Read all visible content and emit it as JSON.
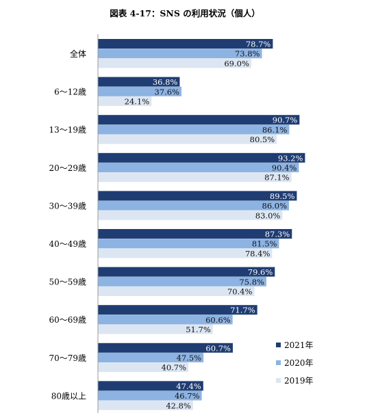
{
  "chart_data": {
    "type": "bar",
    "orientation": "horizontal",
    "title": "図表 4-17：SNS の利用状況（個人）",
    "categories": [
      "全体",
      "6～12歳",
      "13～19歳",
      "20～29歳",
      "30～39歳",
      "40～49歳",
      "50～59歳",
      "60～69歳",
      "70～79歳",
      "80歳以上"
    ],
    "series": [
      {
        "name": "2021年",
        "color": "#1f3d73",
        "values": [
          78.7,
          36.8,
          90.7,
          93.2,
          89.5,
          87.3,
          79.6,
          71.7,
          60.7,
          47.4
        ],
        "labels": [
          "78.7%",
          "36.8%",
          "90.7%",
          "93.2%",
          "89.5%",
          "87.3%",
          "79.6%",
          "71.7%",
          "60.7%",
          "47.4%"
        ]
      },
      {
        "name": "2020年",
        "color": "#8db3e2",
        "values": [
          73.8,
          37.6,
          86.1,
          90.4,
          86.0,
          81.5,
          75.8,
          60.6,
          47.5,
          46.7
        ],
        "labels": [
          "73.8%",
          "37.6%",
          "86.1%",
          "90.4%",
          "86.0%",
          "81.5%",
          "75.8%",
          "60.6%",
          "47.5%",
          "46.7%"
        ]
      },
      {
        "name": "2019年",
        "color": "#dce6f2",
        "values": [
          69.0,
          24.1,
          80.5,
          87.1,
          83.0,
          78.4,
          70.4,
          51.7,
          40.7,
          42.8
        ],
        "labels": [
          "69.0%",
          "24.1%",
          "80.5%",
          "87.1%",
          "83.0%",
          "78.4%",
          "70.4%",
          "51.7%",
          "40.7%",
          "42.8%"
        ]
      }
    ],
    "xlim": [
      0,
      100
    ],
    "grid": false,
    "legend_position": "bottom-right"
  }
}
